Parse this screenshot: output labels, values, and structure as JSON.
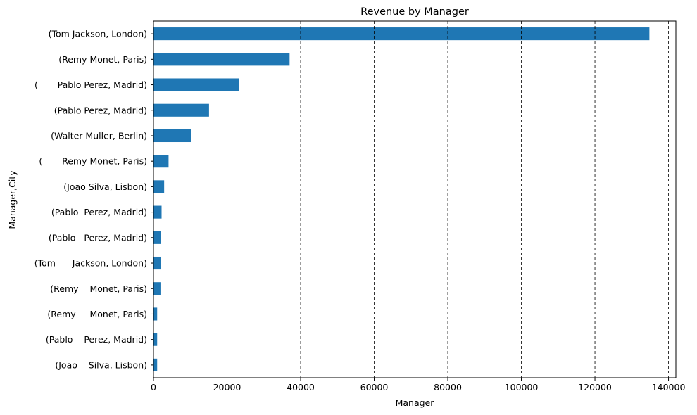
{
  "chart_data": {
    "type": "bar",
    "orientation": "horizontal",
    "title": "Revenue by Manager",
    "xlabel": "Manager",
    "ylabel": "Manager,City",
    "categories": [
      "(Tom Jackson, London)",
      "(Remy Monet, Paris)",
      "(       Pablo Perez, Madrid)",
      "(Pablo Perez, Madrid)",
      "(Walter Muller, Berlin)",
      "(       Remy Monet, Paris)",
      "(Joao Silva, Lisbon)",
      "(Pablo  Perez, Madrid)",
      "(Pablo   Perez, Madrid)",
      "(Tom      Jackson, London)",
      "(Remy    Monet, Paris)",
      "(Remy     Monet, Paris)",
      "(Pablo    Perez, Madrid)",
      "(Joao    Silva, Lisbon)"
    ],
    "values": [
      134800,
      37000,
      23300,
      15100,
      10300,
      4100,
      2900,
      2200,
      2100,
      2000,
      1900,
      1000,
      1000,
      1000
    ],
    "xlim": [
      0,
      142000
    ],
    "xticks": [
      0,
      20000,
      40000,
      60000,
      80000,
      100000,
      120000,
      140000
    ],
    "xtick_labels": [
      "0",
      "20000",
      "40000",
      "60000",
      "80000",
      "100000",
      "120000",
      "140000"
    ],
    "grid": "x-dashed",
    "bar_color": "#1f77b4"
  }
}
